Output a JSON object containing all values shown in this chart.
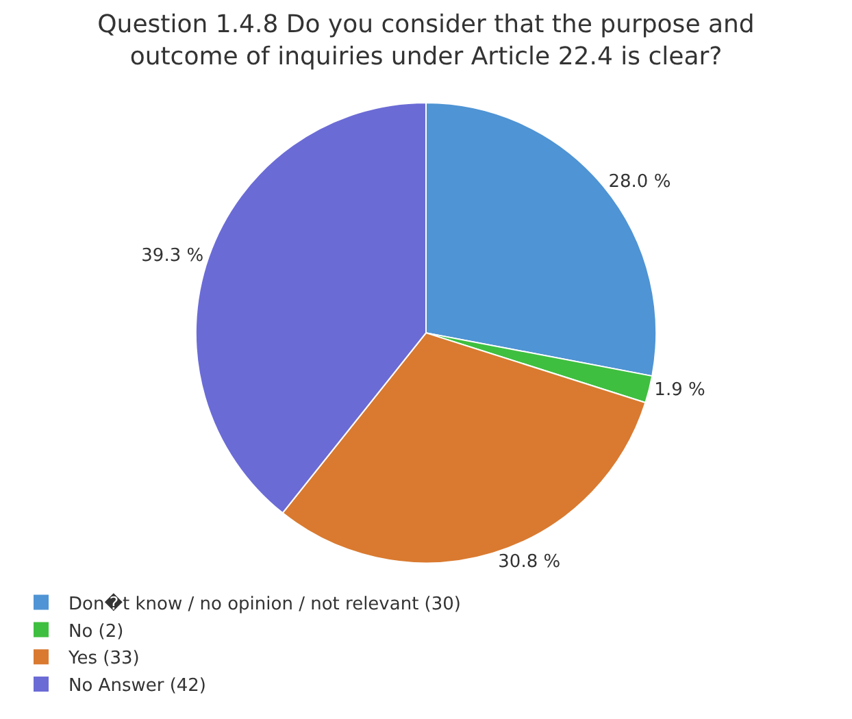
{
  "chart_data": {
    "type": "pie",
    "title": "Question 1.4.8 Do you consider that the purpose and outcome of inquiries under Article 22.4 is clear?",
    "categories": [
      "Don�t know / no opinion / not relevant (30)",
      "No (2)",
      "Yes (33)",
      "No Answer (42)"
    ],
    "values": [
      28.0,
      1.9,
      30.8,
      39.3
    ],
    "value_labels": [
      "28.0 %",
      "1.9 %",
      "30.8 %",
      "39.3 %"
    ],
    "colors": [
      "#4f94d4",
      "#3fbf3f",
      "#d97a30",
      "#6b6bd6"
    ],
    "legend": "bottom"
  }
}
